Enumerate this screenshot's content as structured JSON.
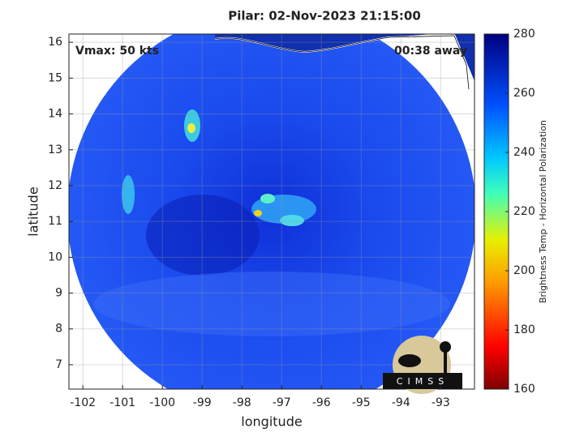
{
  "map": {
    "title": "Pilar: 02-Nov-2023 21:15:00",
    "xlabel": "longitude",
    "ylabel": "latitude",
    "annotations": {
      "left": "Vmax: 50 kts",
      "right": "00:38 away"
    },
    "xlim": [
      -102.35,
      -92.15
    ],
    "ylim": [
      6.32,
      16.23
    ],
    "xticks": [
      -102,
      -101,
      -100,
      -99,
      -98,
      -97,
      -96,
      -95,
      -94,
      -93
    ],
    "yticks": [
      7,
      8,
      9,
      10,
      11,
      12,
      13,
      14,
      15,
      16
    ],
    "grid": true,
    "colorbar": {
      "label": "Brightness Temp - Horizontal Polarization",
      "lim": [
        160,
        280
      ],
      "ticks": [
        160,
        180,
        200,
        220,
        240,
        260,
        280
      ]
    },
    "logo": "CIMSS"
  }
}
